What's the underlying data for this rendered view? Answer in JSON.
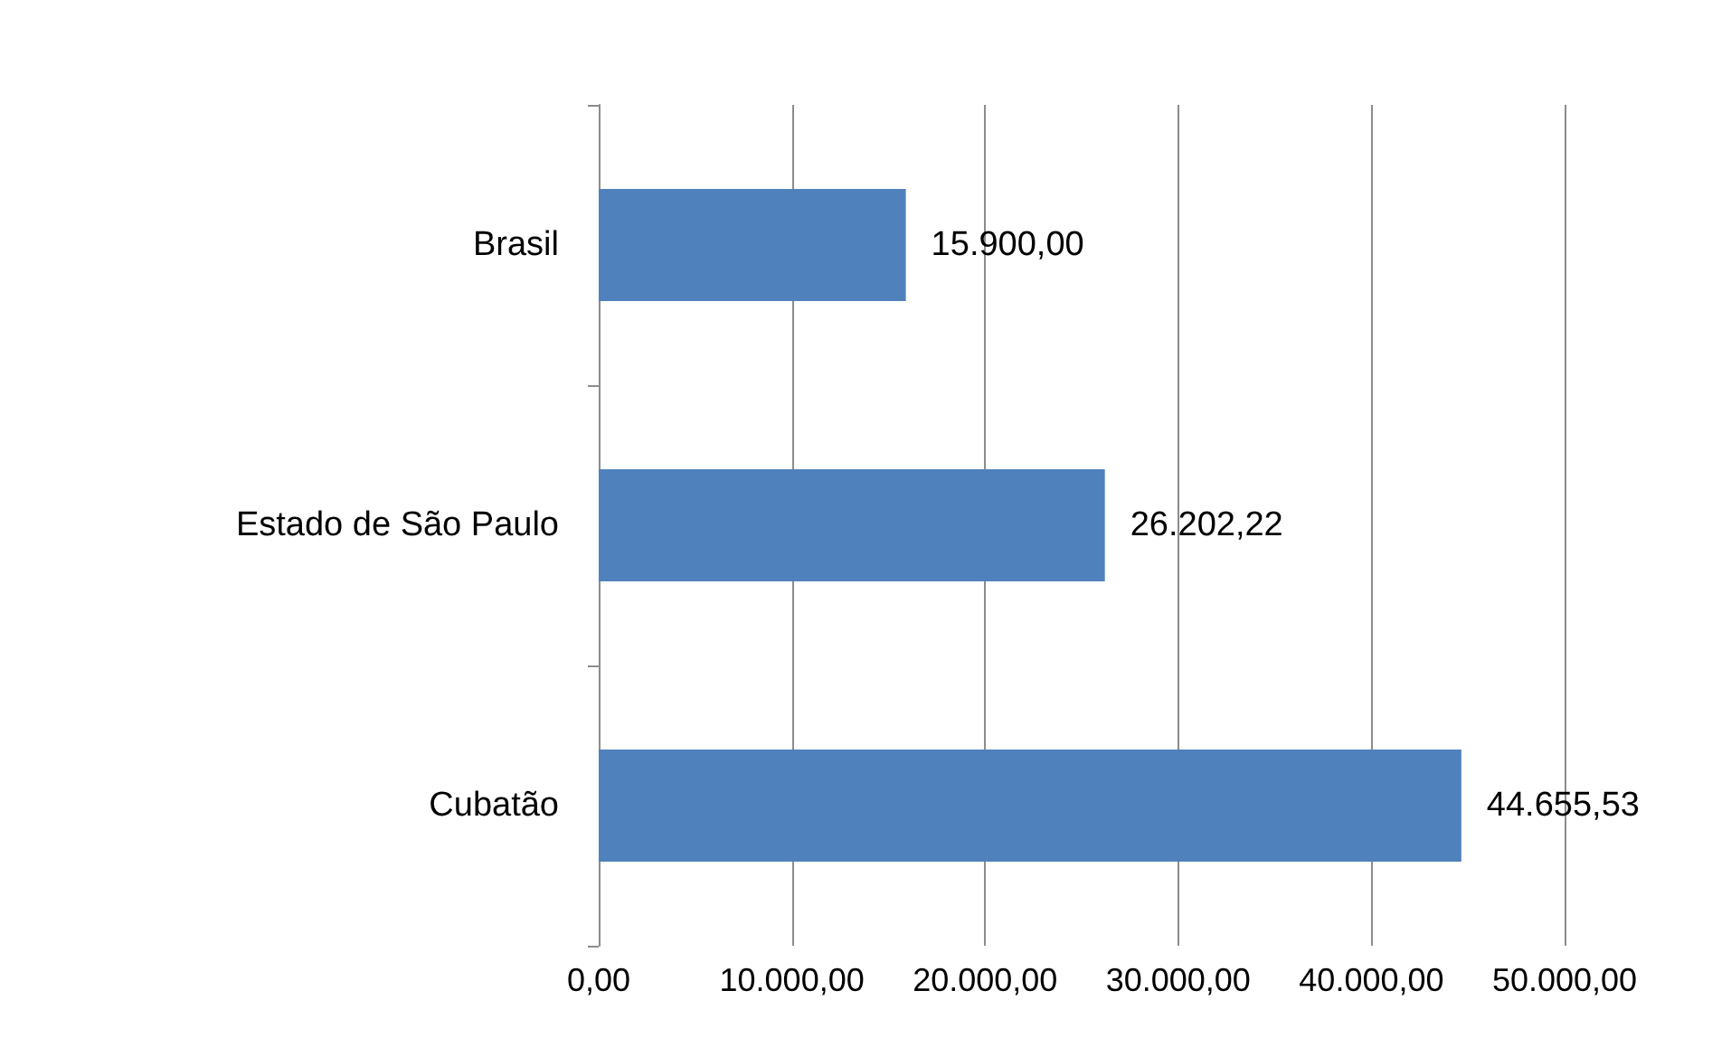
{
  "chart_data": {
    "type": "bar",
    "orientation": "horizontal",
    "categories": [
      "Brasil",
      "Estado de São Paulo",
      "Cubatão"
    ],
    "values": [
      15900,
      26202.22,
      44655.53
    ],
    "value_labels": [
      "15.900,00",
      "26.202,22",
      "44.655,53"
    ],
    "color": "#4f81bd",
    "xlim": [
      0,
      50000
    ],
    "xticks": [
      {
        "value": 0,
        "label": "0,00"
      },
      {
        "value": 10000,
        "label": "10.000,00"
      },
      {
        "value": 20000,
        "label": "20.000,00"
      },
      {
        "value": 30000,
        "label": "30.000,00"
      },
      {
        "value": 40000,
        "label": "40.000,00"
      },
      {
        "value": 50000,
        "label": "50.000,00"
      }
    ],
    "grid": "x"
  }
}
